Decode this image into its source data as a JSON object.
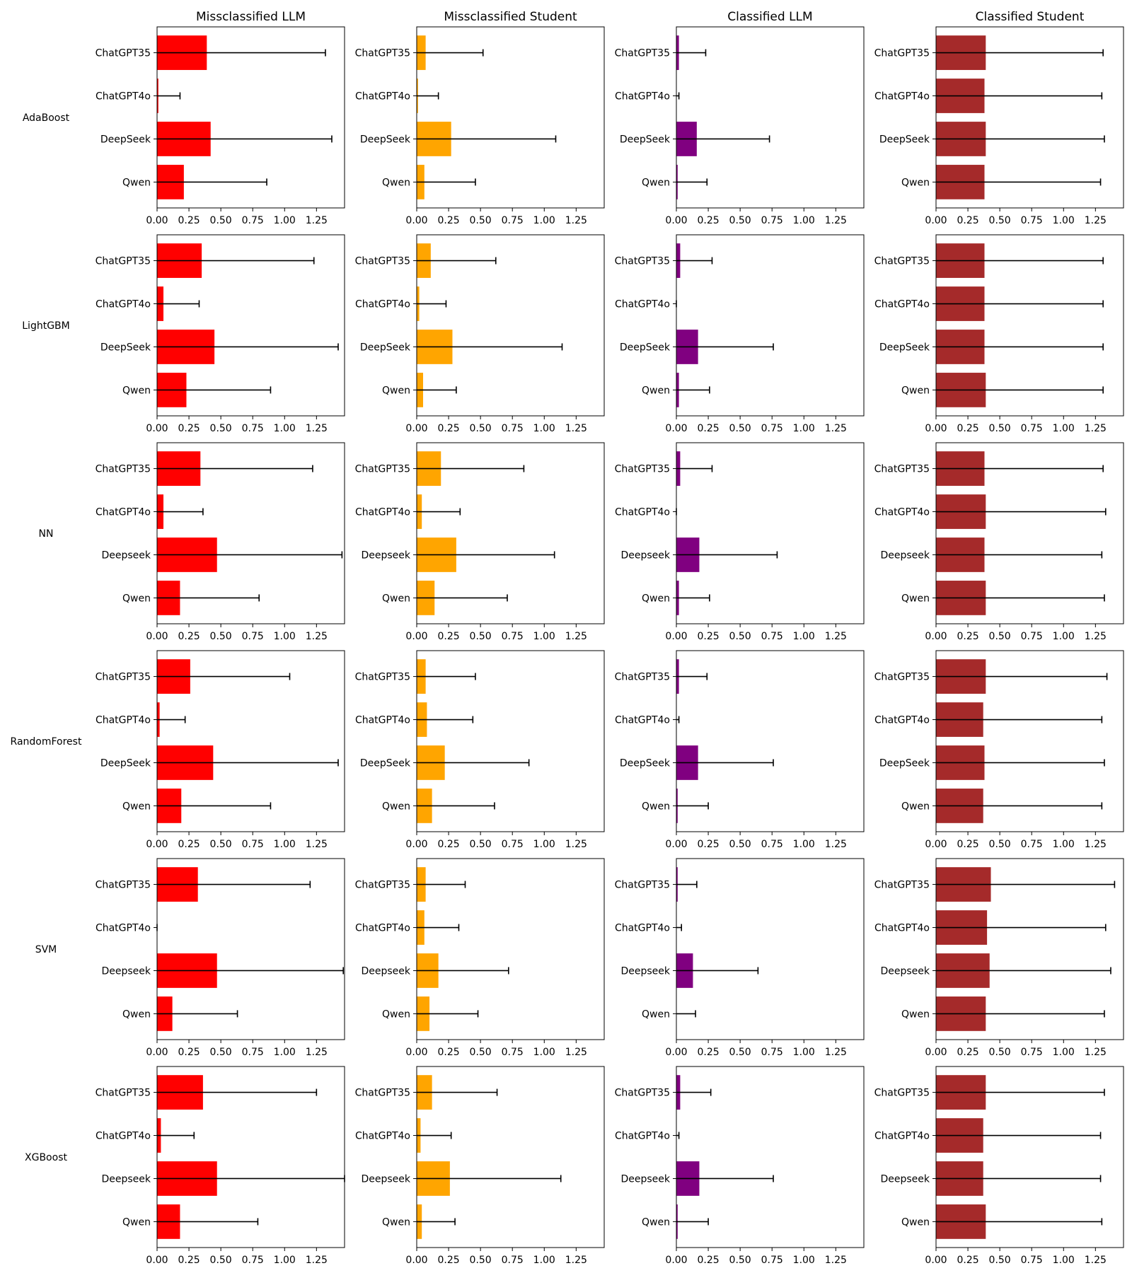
{
  "colors": {
    "col_0": "#ff0000",
    "col_1": "#ffa500",
    "col_2": "#800080",
    "col_3": "#a52a2a",
    "errorbar": "#000000"
  },
  "chart_data": {
    "type": "bar",
    "orientation": "horizontal",
    "grid": false,
    "xlim": [
      0,
      1.47
    ],
    "xticks": [
      "0.00",
      "0.25",
      "0.50",
      "0.75",
      "1.00",
      "1.25"
    ],
    "column_titles": [
      "Missclassified LLM",
      "Missclassified Student",
      "Classified LLM",
      "Classified Student"
    ],
    "rows": [
      {
        "model": "AdaBoost",
        "categories": [
          "ChatGPT35",
          "ChatGPT4o",
          "DeepSeek",
          "Qwen"
        ],
        "panels": [
          {
            "title": "Missclassified LLM",
            "values": [
              0.39,
              0.01,
              0.42,
              0.21
            ],
            "errors": [
              0.93,
              0.17,
              0.95,
              0.65
            ]
          },
          {
            "title": "Missclassified Student",
            "values": [
              0.07,
              0.01,
              0.27,
              0.06
            ],
            "errors": [
              0.45,
              0.16,
              0.82,
              0.4
            ]
          },
          {
            "title": "Classified LLM",
            "values": [
              0.02,
              0.0,
              0.16,
              0.01
            ],
            "errors": [
              0.21,
              0.02,
              0.57,
              0.23
            ]
          },
          {
            "title": "Classified Student",
            "values": [
              0.39,
              0.38,
              0.39,
              0.38
            ],
            "errors": [
              0.92,
              0.92,
              0.93,
              0.91
            ]
          }
        ]
      },
      {
        "model": "LightGBM",
        "categories": [
          "ChatGPT35",
          "ChatGPT4o",
          "DeepSeek",
          "Qwen"
        ],
        "panels": [
          {
            "title": "Missclassified LLM",
            "values": [
              0.35,
              0.05,
              0.45,
              0.23
            ],
            "errors": [
              0.88,
              0.28,
              0.97,
              0.66
            ]
          },
          {
            "title": "Missclassified Student",
            "values": [
              0.11,
              0.02,
              0.28,
              0.05
            ],
            "errors": [
              0.51,
              0.21,
              0.86,
              0.26
            ]
          },
          {
            "title": "Classified LLM",
            "values": [
              0.03,
              0.0,
              0.17,
              0.02
            ],
            "errors": [
              0.25,
              0.0,
              0.59,
              0.24
            ]
          },
          {
            "title": "Classified Student",
            "values": [
              0.38,
              0.38,
              0.38,
              0.39
            ],
            "errors": [
              0.93,
              0.93,
              0.93,
              0.92
            ]
          }
        ]
      },
      {
        "model": "NN",
        "categories": [
          "ChatGPT35",
          "ChatGPT4o",
          "Deepseek",
          "Qwen"
        ],
        "panels": [
          {
            "title": "Missclassified LLM",
            "values": [
              0.34,
              0.05,
              0.47,
              0.18
            ],
            "errors": [
              0.88,
              0.31,
              0.98,
              0.62
            ]
          },
          {
            "title": "Missclassified Student",
            "values": [
              0.19,
              0.04,
              0.31,
              0.14
            ],
            "errors": [
              0.65,
              0.3,
              0.77,
              0.57
            ]
          },
          {
            "title": "Classified LLM",
            "values": [
              0.03,
              0.0,
              0.18,
              0.02
            ],
            "errors": [
              0.25,
              0.0,
              0.61,
              0.24
            ]
          },
          {
            "title": "Classified Student",
            "values": [
              0.38,
              0.39,
              0.38,
              0.39
            ],
            "errors": [
              0.93,
              0.94,
              0.92,
              0.93
            ]
          }
        ]
      },
      {
        "model": "RandomForest",
        "categories": [
          "ChatGPT35",
          "ChatGPT4o",
          "DeepSeek",
          "Qwen"
        ],
        "panels": [
          {
            "title": "Missclassified LLM",
            "values": [
              0.26,
              0.02,
              0.44,
              0.19
            ],
            "errors": [
              0.78,
              0.2,
              0.98,
              0.7
            ]
          },
          {
            "title": "Missclassified Student",
            "values": [
              0.07,
              0.08,
              0.22,
              0.12
            ],
            "errors": [
              0.39,
              0.36,
              0.66,
              0.49
            ]
          },
          {
            "title": "Classified LLM",
            "values": [
              0.02,
              0.0,
              0.17,
              0.01
            ],
            "errors": [
              0.22,
              0.02,
              0.59,
              0.24
            ]
          },
          {
            "title": "Classified Student",
            "values": [
              0.39,
              0.37,
              0.38,
              0.37
            ],
            "errors": [
              0.95,
              0.93,
              0.94,
              0.93
            ]
          }
        ]
      },
      {
        "model": "SVM",
        "categories": [
          "ChatGPT35",
          "ChatGPT4o",
          "Deepseek",
          "Qwen"
        ],
        "panels": [
          {
            "title": "Missclassified LLM",
            "values": [
              0.32,
              0.0,
              0.47,
              0.12
            ],
            "errors": [
              0.88,
              0.0,
              0.99,
              0.51
            ]
          },
          {
            "title": "Missclassified Student",
            "values": [
              0.07,
              0.06,
              0.17,
              0.1
            ],
            "errors": [
              0.31,
              0.27,
              0.55,
              0.38
            ]
          },
          {
            "title": "Classified LLM",
            "values": [
              0.01,
              0.0,
              0.13,
              0.0
            ],
            "errors": [
              0.15,
              0.04,
              0.51,
              0.15
            ]
          },
          {
            "title": "Classified Student",
            "values": [
              0.43,
              0.4,
              0.42,
              0.39
            ],
            "errors": [
              0.97,
              0.93,
              0.95,
              0.93
            ]
          }
        ]
      },
      {
        "model": "XGBoost",
        "categories": [
          "ChatGPT35",
          "ChatGPT4o",
          "Deepseek",
          "Qwen"
        ],
        "panels": [
          {
            "title": "Missclassified LLM",
            "values": [
              0.36,
              0.03,
              0.47,
              0.18
            ],
            "errors": [
              0.89,
              0.26,
              1.0,
              0.61
            ]
          },
          {
            "title": "Missclassified Student",
            "values": [
              0.12,
              0.03,
              0.26,
              0.04
            ],
            "errors": [
              0.51,
              0.24,
              0.87,
              0.26
            ]
          },
          {
            "title": "Classified LLM",
            "values": [
              0.03,
              0.0,
              0.18,
              0.01
            ],
            "errors": [
              0.24,
              0.02,
              0.58,
              0.24
            ]
          },
          {
            "title": "Classified Student",
            "values": [
              0.39,
              0.37,
              0.37,
              0.39
            ],
            "errors": [
              0.93,
              0.92,
              0.92,
              0.91
            ]
          }
        ]
      }
    ]
  }
}
